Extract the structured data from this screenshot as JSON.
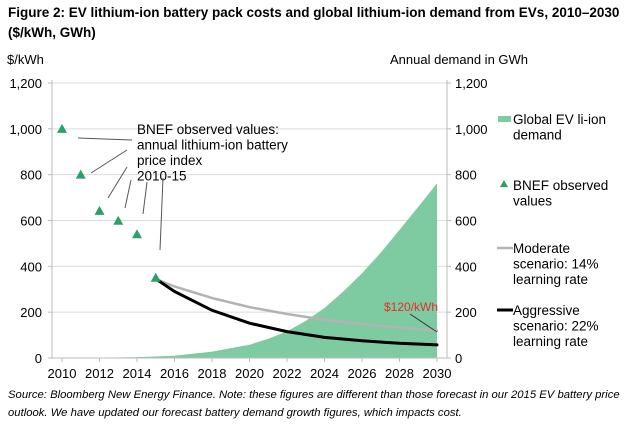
{
  "chart_data": {
    "type": "area+scatter+line",
    "title": "Figure 2:  EV lithium-ion battery pack costs and global lithium-ion demand from EVs, 2010–2030 ($/kWh, GWh)",
    "ylabel_left": "$/kWh",
    "ylabel_right": "Annual demand in GWh",
    "xlim": [
      2010,
      2030
    ],
    "ylim_left": [
      0,
      1200
    ],
    "ylim_right": [
      0,
      1200
    ],
    "x_ticks": [
      "2010",
      "2012",
      "2014",
      "2016",
      "2018",
      "2020",
      "2022",
      "2024",
      "2026",
      "2028",
      "2030"
    ],
    "y_ticks_left": [
      "0",
      "200",
      "400",
      "600",
      "800",
      "1,000",
      "1,200"
    ],
    "y_ticks_right": [
      "0",
      "200",
      "400",
      "600",
      "800",
      "1,000",
      "1,200"
    ],
    "grid": "horizontal",
    "legend_position": "right",
    "series": [
      {
        "name": "Global EV li-ion demand",
        "type": "area",
        "axis": "right",
        "color": "#7ecba1",
        "x": [
          2010,
          2012,
          2014,
          2016,
          2018,
          2020,
          2021,
          2022,
          2023,
          2024,
          2025,
          2026,
          2027,
          2028,
          2029,
          2030
        ],
        "y": [
          0,
          1,
          4,
          10,
          28,
          58,
          84,
          116,
          162,
          218,
          290,
          370,
          460,
          559,
          660,
          762
        ]
      },
      {
        "name": "BNEF observed values",
        "type": "scatter",
        "axis": "left",
        "color": "#2e9e6b",
        "x": [
          2010,
          2011,
          2012,
          2013,
          2014,
          2015
        ],
        "y": [
          1000,
          800,
          642,
          599,
          540,
          350
        ]
      },
      {
        "name": "Moderate scenario: 14% learning rate",
        "type": "line",
        "axis": "left",
        "color": "#b3b3b3",
        "x": [
          2015,
          2016,
          2018,
          2020,
          2022,
          2024,
          2026,
          2028,
          2030
        ],
        "y": [
          345,
          312,
          262,
          222,
          192,
          167,
          148,
          133,
          120
        ]
      },
      {
        "name": "Aggressive scenario: 22% learning rate",
        "type": "line",
        "axis": "left",
        "color": "#000000",
        "x": [
          2015,
          2016,
          2018,
          2020,
          2022,
          2024,
          2026,
          2028,
          2030
        ],
        "y": [
          345,
          290,
          208,
          152,
          115,
          90,
          75,
          64,
          57
        ]
      }
    ],
    "legend": [
      {
        "lines": [
          "Global EV li-ion",
          "demand"
        ]
      },
      {
        "lines": [
          "BNEF observed",
          "values"
        ]
      },
      {
        "lines": [
          "Moderate",
          "scenario: 14%",
          "learning rate"
        ]
      },
      {
        "lines": [
          "Aggressive",
          "scenario: 22%",
          "learning rate"
        ]
      }
    ],
    "annotations": {
      "observed_note": [
        "BNEF observed values:",
        "annual lithium-ion battery",
        "price index",
        "2010-15"
      ],
      "target_label": "$120/kWh",
      "target_color": "#e0302a"
    }
  },
  "source": "Source: Bloomberg New Energy Finance. Note: these figures are different than those forecast in our 2015 EV battery price outlook. We have updated our forecast battery demand growth figures, which impacts cost."
}
